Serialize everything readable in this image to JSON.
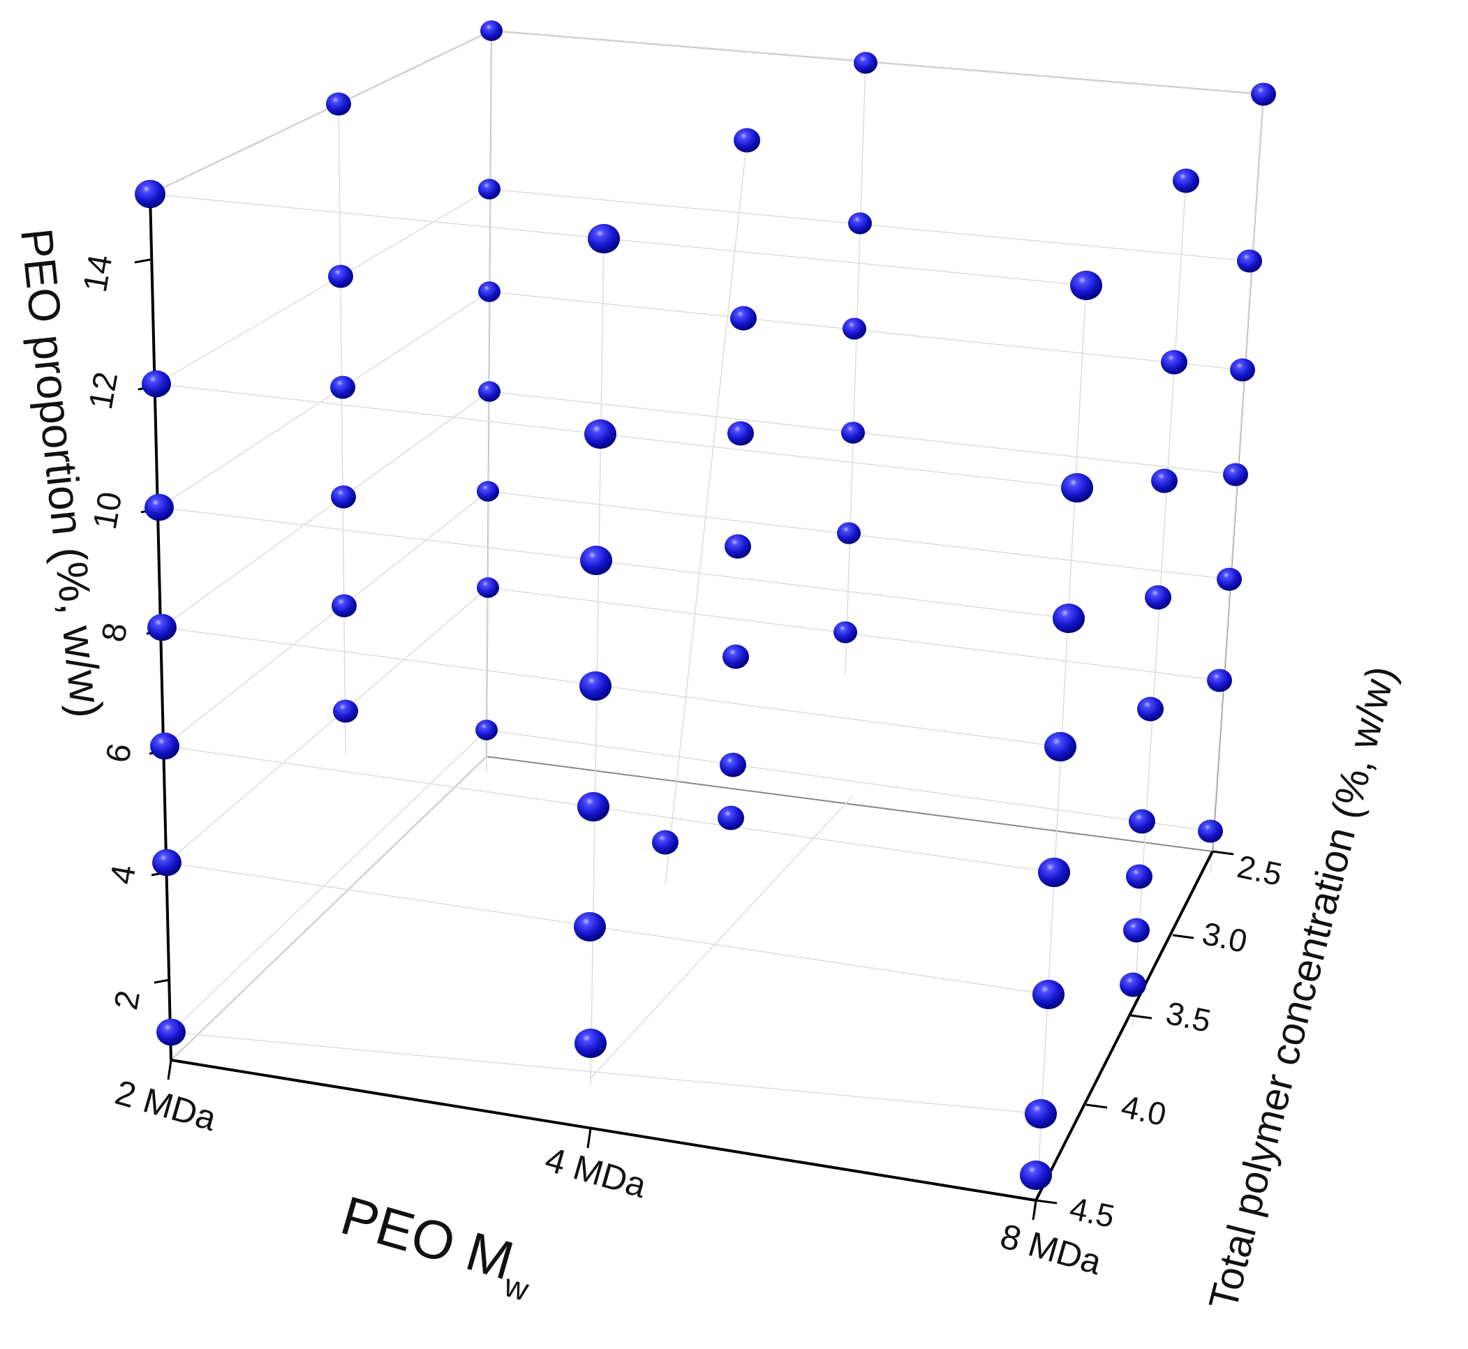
{
  "chart_data": {
    "type": "scatter3d",
    "title": "",
    "axes": {
      "x": {
        "label": "PEO M",
        "label_sub": "w",
        "ticks": [
          "2 MDa",
          "4 MDa",
          "8 MDa"
        ]
      },
      "y": {
        "label": "Total polymer concentration (%, w/w)",
        "ticks": [
          "2.5",
          "3.0",
          "3.5",
          "4.0",
          "4.5"
        ],
        "range": [
          2.5,
          4.5
        ]
      },
      "z": {
        "label": "PEO proportion (%, w/w)",
        "ticks": [
          "2",
          "4",
          "6",
          "8",
          "10",
          "12",
          "14"
        ],
        "range": [
          1,
          15
        ]
      }
    },
    "marker": {
      "shape": "sphere",
      "color": "#1414c8",
      "highlight": "#8a8aff",
      "shadow": "#00006e"
    },
    "grid": true,
    "legend": null,
    "points_screen": [
      [
        215,
        278,
        22
      ],
      [
        224,
        550,
        21
      ],
      [
        228,
        727,
        21
      ],
      [
        232,
        899,
        21
      ],
      [
        236,
        1069,
        21
      ],
      [
        239,
        1236,
        21
      ],
      [
        245,
        1479,
        21
      ],
      [
        485,
        149,
        18
      ],
      [
        488,
        396,
        18
      ],
      [
        491,
        555,
        18
      ],
      [
        492,
        712,
        18
      ],
      [
        493,
        868,
        18
      ],
      [
        495,
        1019,
        18
      ],
      [
        704,
        44,
        16
      ],
      [
        701,
        271,
        16
      ],
      [
        701,
        418,
        16
      ],
      [
        701,
        561,
        16
      ],
      [
        699,
        704,
        16
      ],
      [
        699,
        842,
        16
      ],
      [
        697,
        1046,
        16
      ],
      [
        865,
        342,
        23
      ],
      [
        860,
        622,
        23
      ],
      [
        854,
        803,
        23
      ],
      [
        853,
        983,
        23
      ],
      [
        850,
        1156,
        23
      ],
      [
        845,
        1328,
        23
      ],
      [
        846,
        1495,
        23
      ],
      [
        1070,
        201,
        19
      ],
      [
        1065,
        456,
        19
      ],
      [
        1061,
        621,
        19
      ],
      [
        1057,
        783,
        19
      ],
      [
        1054,
        941,
        19
      ],
      [
        1050,
        1096,
        19
      ],
      [
        1047,
        1172,
        19
      ],
      [
        953,
        1207,
        19
      ],
      [
        1240,
        90,
        17
      ],
      [
        1232,
        320,
        17
      ],
      [
        1224,
        471,
        17
      ],
      [
        1222,
        620,
        17
      ],
      [
        1216,
        764,
        17
      ],
      [
        1211,
        906,
        17
      ],
      [
        1556,
        409,
        23
      ],
      [
        1543,
        699,
        23
      ],
      [
        1531,
        886,
        23
      ],
      [
        1519,
        1070,
        23
      ],
      [
        1510,
        1250,
        23
      ],
      [
        1502,
        1425,
        23
      ],
      [
        1491,
        1596,
        23
      ],
      [
        1484,
        1684,
        23
      ],
      [
        1699,
        259,
        19
      ],
      [
        1682,
        519,
        19
      ],
      [
        1668,
        689,
        19
      ],
      [
        1659,
        856,
        19
      ],
      [
        1648,
        1016,
        19
      ],
      [
        1636,
        1177,
        19
      ],
      [
        1632,
        1256,
        19
      ],
      [
        1628,
        1333,
        19
      ],
      [
        1623,
        1411,
        19
      ],
      [
        1810,
        135,
        18
      ],
      [
        1790,
        374,
        18
      ],
      [
        1780,
        530,
        18
      ],
      [
        1770,
        680,
        18
      ],
      [
        1761,
        830,
        18
      ],
      [
        1747,
        975,
        18
      ],
      [
        1734,
        1191,
        18
      ]
    ]
  },
  "labels": {
    "z_title": "PEO proportion (%, w/w)",
    "x_title_main": "PEO M",
    "x_title_sub": "w",
    "y_title": "Total polymer concentration (%, w/w)",
    "x_ticks": [
      "2 MDa",
      "4 MDa",
      "8 MDa"
    ],
    "y_ticks": [
      "2.5",
      "3.0",
      "3.5",
      "4.0",
      "4.5"
    ],
    "z_ticks": [
      "14",
      "12",
      "10",
      "8",
      "6",
      "4",
      "2"
    ]
  }
}
